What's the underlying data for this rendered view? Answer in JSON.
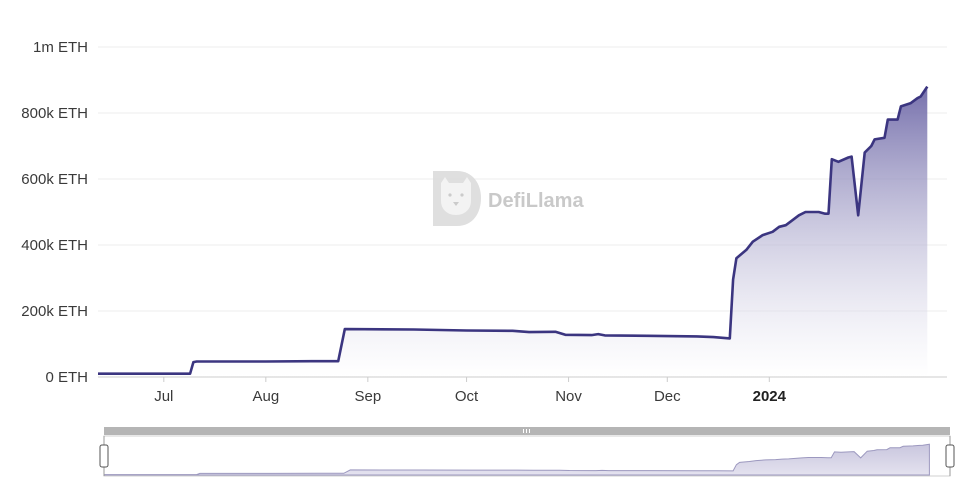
{
  "watermark": {
    "text": "DefiLlama",
    "icon": "llama-logo-icon"
  },
  "colors": {
    "line": "#3b3580",
    "fill_top": "#6f69a8",
    "fill_bottom": "#ffffff",
    "grid": "#ececec",
    "nav_fill": "#d8d6e6",
    "nav_line": "#9c98bf",
    "nav_bar": "#b5b5b5"
  },
  "chart_data": {
    "type": "area",
    "title": "",
    "xlabel": "",
    "ylabel": "",
    "unit": "ETH",
    "y_ticks": [
      {
        "value": 0,
        "label": "0 ETH"
      },
      {
        "value": 200000,
        "label": "200k ETH"
      },
      {
        "value": 400000,
        "label": "400k ETH"
      },
      {
        "value": 600000,
        "label": "600k ETH"
      },
      {
        "value": 800000,
        "label": "800k ETH"
      },
      {
        "value": 1000000,
        "label": "1m ETH"
      }
    ],
    "ylim": [
      0,
      1000000
    ],
    "xlim": [
      "2023-06-11",
      "2024-02-24"
    ],
    "x_ticks": [
      {
        "date": "2023-07-01",
        "label": "Jul",
        "bold": false
      },
      {
        "date": "2023-08-01",
        "label": "Aug",
        "bold": false
      },
      {
        "date": "2023-09-01",
        "label": "Sep",
        "bold": false
      },
      {
        "date": "2023-10-01",
        "label": "Oct",
        "bold": false
      },
      {
        "date": "2023-11-01",
        "label": "Nov",
        "bold": false
      },
      {
        "date": "2023-12-01",
        "label": "Dec",
        "bold": false
      },
      {
        "date": "2024-01-01",
        "label": "2024",
        "bold": true
      }
    ],
    "grid": true,
    "legend": "none",
    "series": [
      {
        "points": [
          [
            "2023-06-11",
            10000
          ],
          [
            "2023-07-09",
            10000
          ],
          [
            "2023-07-10",
            45000
          ],
          [
            "2023-07-11",
            47000
          ],
          [
            "2023-08-01",
            47000
          ],
          [
            "2023-08-15",
            48000
          ],
          [
            "2023-08-23",
            48000
          ],
          [
            "2023-08-25",
            145000
          ],
          [
            "2023-09-15",
            144000
          ],
          [
            "2023-10-01",
            141000
          ],
          [
            "2023-10-15",
            140000
          ],
          [
            "2023-10-20",
            136000
          ],
          [
            "2023-10-28",
            137000
          ],
          [
            "2023-10-31",
            128000
          ],
          [
            "2023-11-08",
            127000
          ],
          [
            "2023-11-10",
            130000
          ],
          [
            "2023-11-12",
            126000
          ],
          [
            "2023-11-25",
            125000
          ],
          [
            "2023-12-10",
            123000
          ],
          [
            "2023-12-15",
            121000
          ],
          [
            "2023-12-20",
            117000
          ],
          [
            "2023-12-21",
            295000
          ],
          [
            "2023-12-22",
            360000
          ],
          [
            "2023-12-25",
            385000
          ],
          [
            "2023-12-27",
            410000
          ],
          [
            "2023-12-30",
            430000
          ],
          [
            "2024-01-02",
            440000
          ],
          [
            "2024-01-04",
            455000
          ],
          [
            "2024-01-06",
            460000
          ],
          [
            "2024-01-08",
            475000
          ],
          [
            "2024-01-10",
            490000
          ],
          [
            "2024-01-12",
            500000
          ],
          [
            "2024-01-16",
            500000
          ],
          [
            "2024-01-18",
            495000
          ],
          [
            "2024-01-19",
            495000
          ],
          [
            "2024-01-20",
            660000
          ],
          [
            "2024-01-22",
            652000
          ],
          [
            "2024-01-25",
            665000
          ],
          [
            "2024-01-26",
            668000
          ],
          [
            "2024-01-28",
            490000
          ],
          [
            "2024-01-30",
            680000
          ],
          [
            "2024-02-01",
            700000
          ],
          [
            "2024-02-02",
            720000
          ],
          [
            "2024-02-05",
            725000
          ],
          [
            "2024-02-06",
            780000
          ],
          [
            "2024-02-09",
            780000
          ],
          [
            "2024-02-10",
            820000
          ],
          [
            "2024-02-13",
            830000
          ],
          [
            "2024-02-15",
            845000
          ],
          [
            "2024-02-16",
            850000
          ],
          [
            "2024-02-18",
            880000
          ]
        ]
      }
    ]
  }
}
